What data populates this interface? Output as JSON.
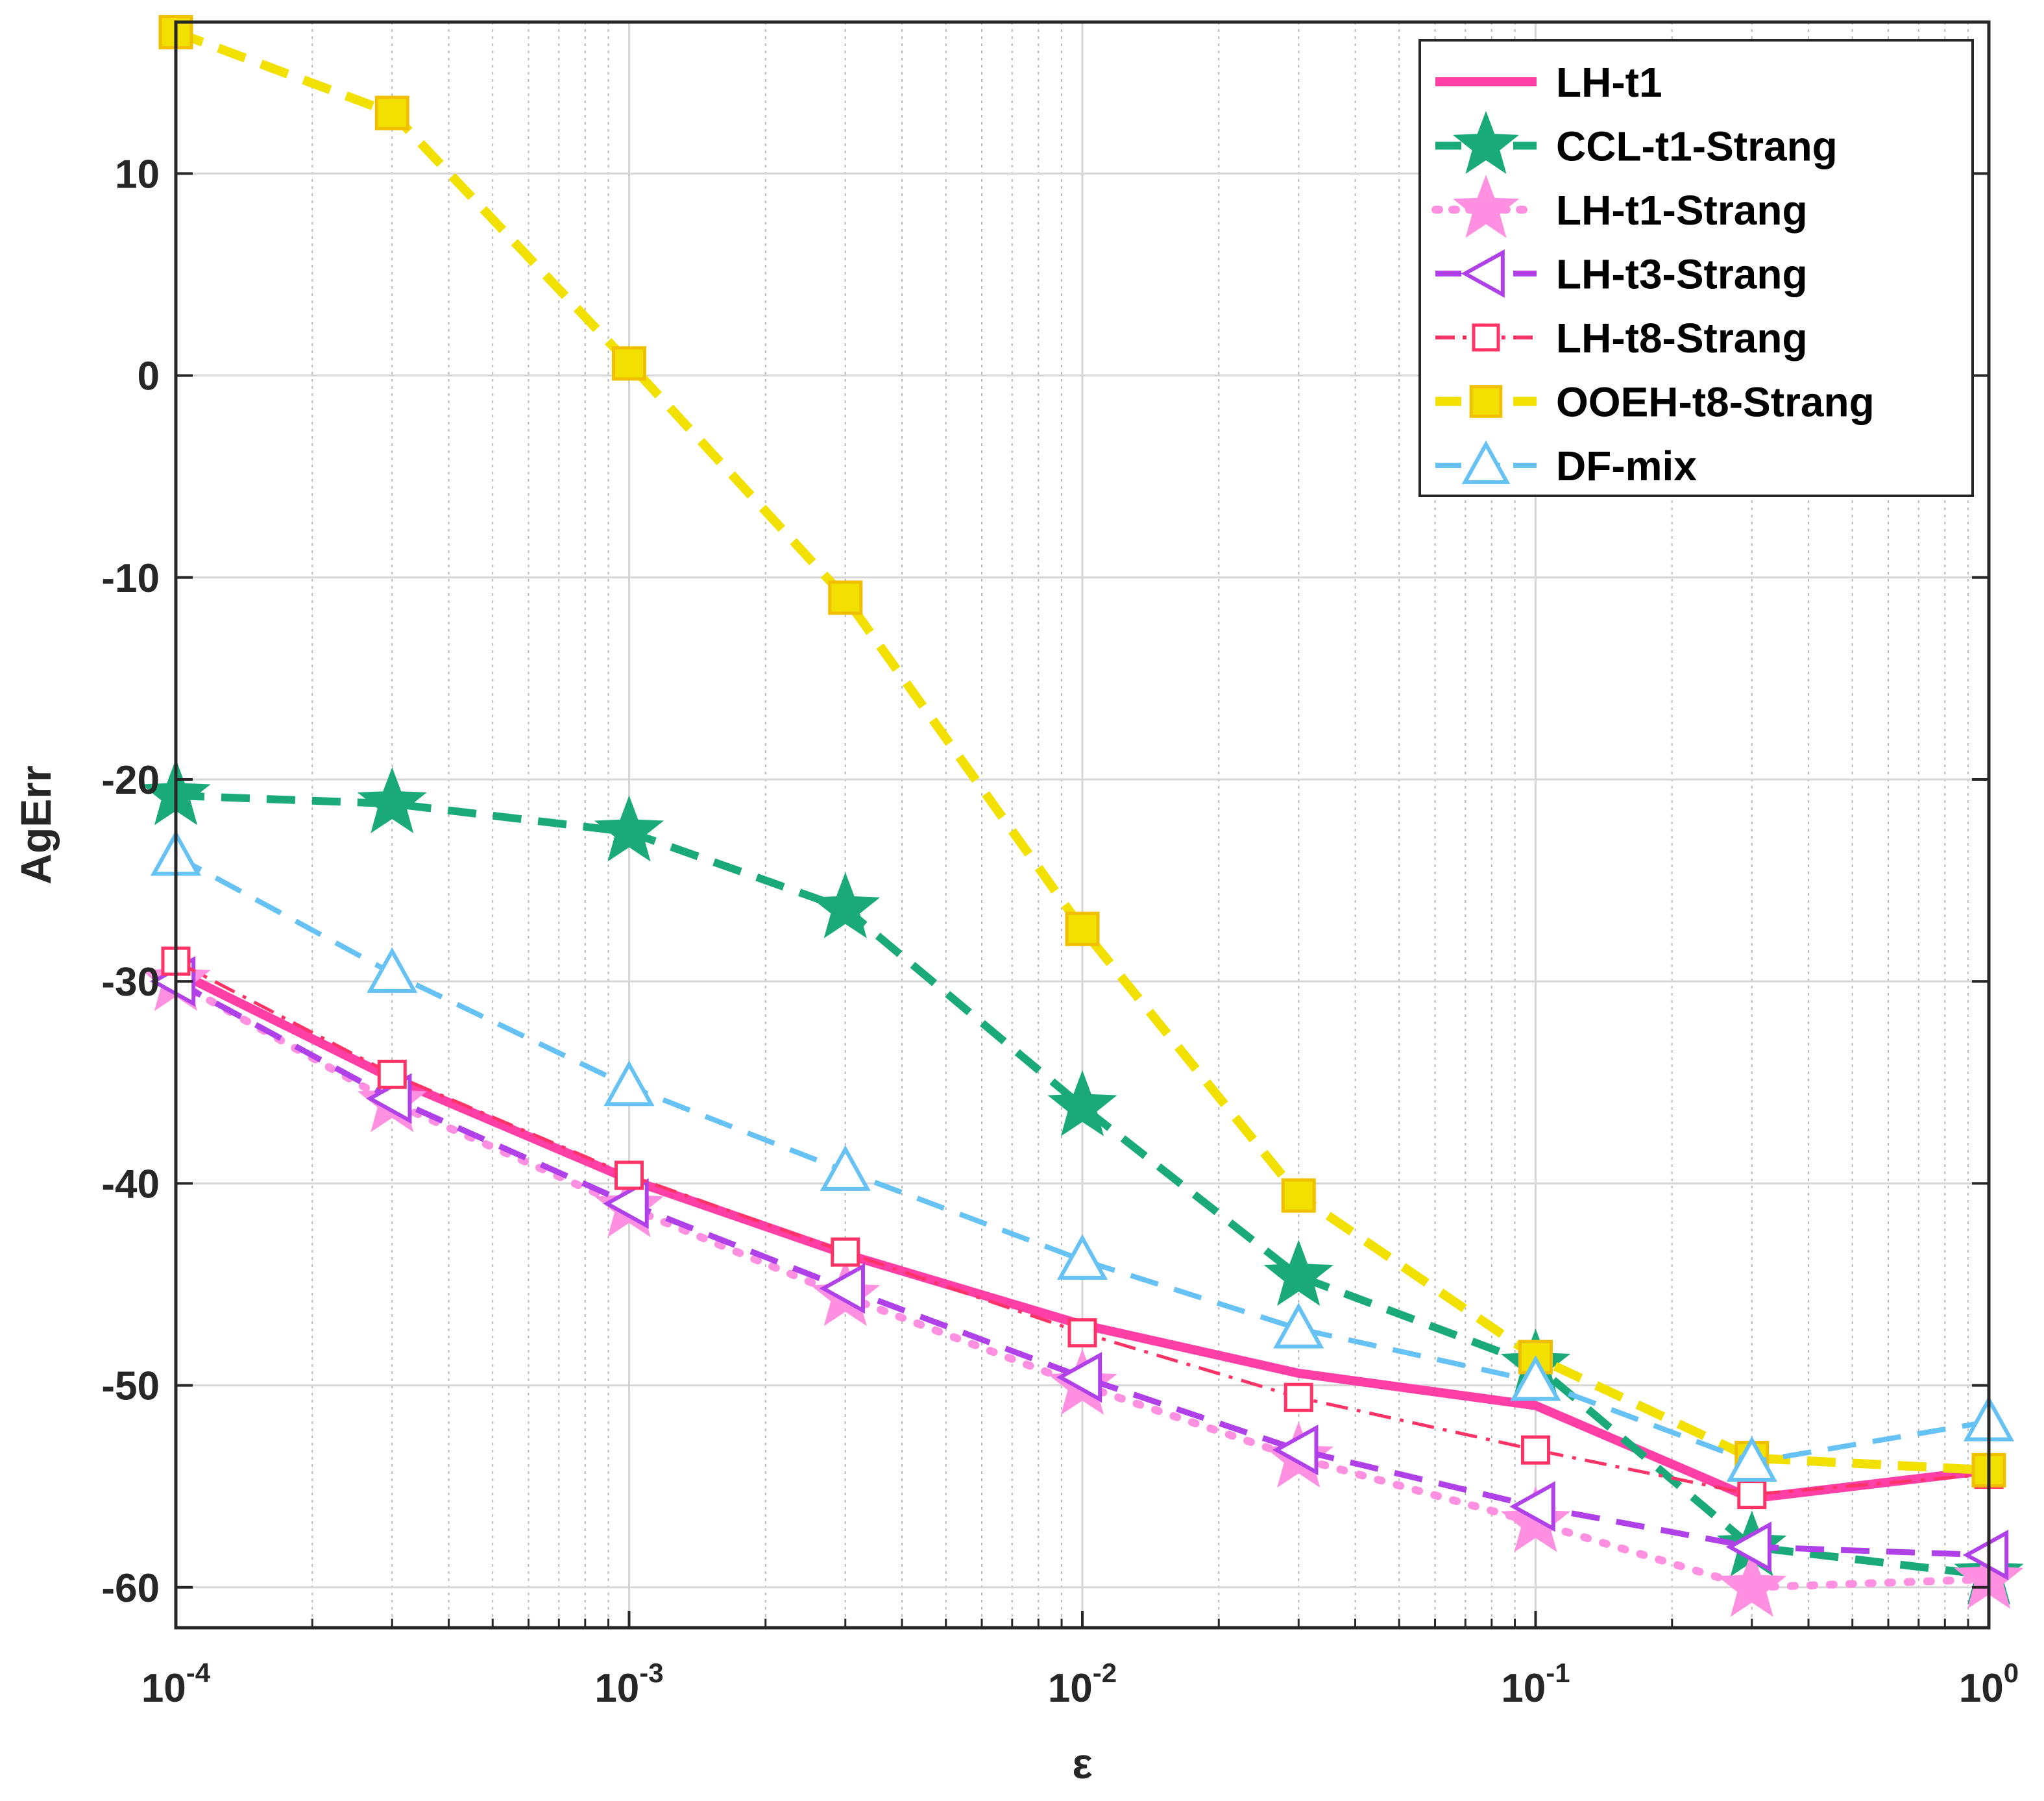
{
  "chart_data": {
    "type": "line",
    "title": "",
    "xlabel": "ε",
    "ylabel": "AgErr",
    "xscale": "log",
    "xlim": [
      0.0001,
      1
    ],
    "ylim": [
      -62,
      17.5
    ],
    "grid": true,
    "legend_position": "top-right",
    "x": [
      0.0001,
      0.0003,
      0.001,
      0.003,
      0.01,
      0.03,
      0.1,
      0.3,
      1
    ],
    "x_ticks": [
      {
        "value": 0.0001,
        "base": "10",
        "exp": "-4"
      },
      {
        "value": 0.001,
        "base": "10",
        "exp": "-3"
      },
      {
        "value": 0.01,
        "base": "10",
        "exp": "-2"
      },
      {
        "value": 0.1,
        "base": "10",
        "exp": "-1"
      },
      {
        "value": 1,
        "base": "10",
        "exp": "0"
      }
    ],
    "y_ticks": [
      10,
      0,
      -10,
      -20,
      -30,
      -40,
      -50,
      -60
    ],
    "y_tick_labels": [
      "10",
      "0",
      "-10",
      "-20",
      "-30",
      "-40",
      "-50",
      "-60"
    ],
    "series": [
      {
        "name": "LH-t1",
        "color": "#ff3fa6",
        "dash": "solid",
        "width": 14,
        "marker": "none",
        "values": [
          -29.5,
          -34.8,
          -39.8,
          -43.5,
          -47,
          -49.4,
          -51,
          -55.6,
          -54.2
        ]
      },
      {
        "name": "CCL-t1-Strang",
        "color": "#1aaa7a",
        "dash": "dash",
        "width": 12,
        "marker": "star-filled",
        "values": [
          -20.8,
          -21.2,
          -22.6,
          -26.4,
          -36.2,
          -44.6,
          -49,
          -58,
          -59.4
        ]
      },
      {
        "name": "LH-t1-Strang",
        "color": "#ff8fe0",
        "dash": "dot",
        "width": 12,
        "marker": "star-filled",
        "values": [
          -30,
          -36,
          -41.2,
          -45.6,
          -50,
          -53.6,
          -56.8,
          -60,
          -59.6
        ]
      },
      {
        "name": "LH-t3-Strang",
        "color": "#b040e8",
        "dash": "dash",
        "width": 9,
        "marker": "triangle-left",
        "values": [
          -30,
          -35.8,
          -41,
          -45.2,
          -49.6,
          -53.2,
          -56,
          -58,
          -58.4
        ]
      },
      {
        "name": "LH-t8-Strang",
        "color": "#ff3366",
        "dash": "dashdot",
        "width": 5,
        "marker": "square-open",
        "values": [
          -29,
          -34.6,
          -39.6,
          -43.4,
          -47.4,
          -50.6,
          -53.2,
          -55.4,
          -54.4
        ]
      },
      {
        "name": "OOEH-t8-Strang",
        "color": "#f2e000",
        "dash": "dash",
        "width": 14,
        "marker": "square-filled",
        "values": [
          17,
          13,
          0.6,
          -11,
          -27.4,
          -40.6,
          -48.6,
          -53.6,
          -54.2
        ]
      },
      {
        "name": "DF-mix",
        "color": "#66c2f5",
        "dash": "dash",
        "width": 8,
        "marker": "triangle-up",
        "values": [
          -23.8,
          -29.6,
          -35.2,
          -39.4,
          -43.8,
          -47.2,
          -49.8,
          -53.8,
          -51.8
        ]
      }
    ]
  }
}
